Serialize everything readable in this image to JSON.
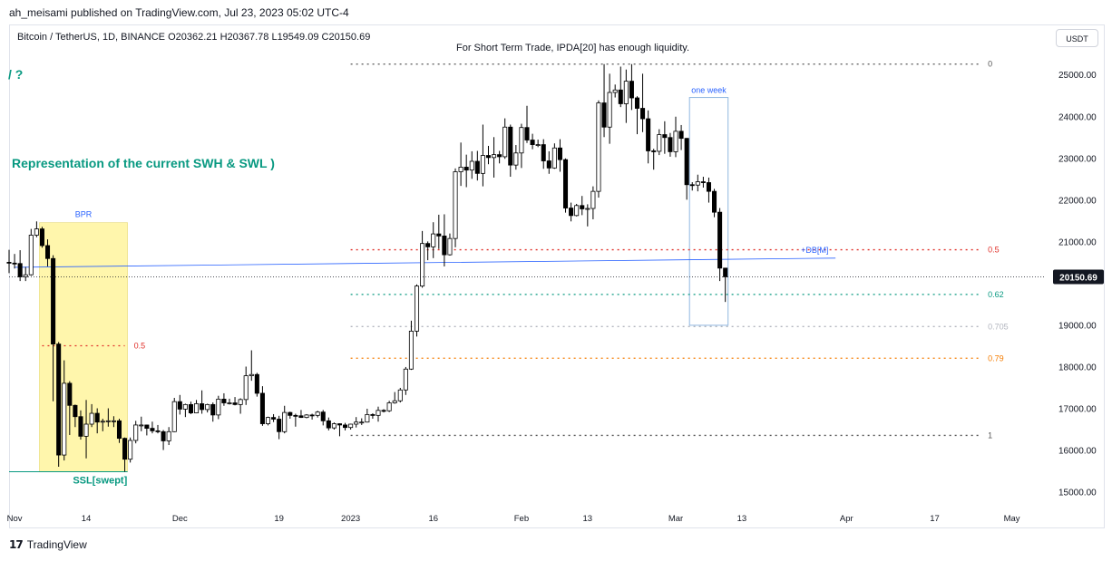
{
  "header": {
    "published_by": "ah_meisami published on TradingView.com, Jul 23, 2023 05:02 UTC-4"
  },
  "symbol_line": "Bitcoin / TetherUS, 1D, BINANCE  O20362.21  H20367.78  L19549.09  C20150.69",
  "currency_button": "USDT",
  "footer": {
    "brand": "TradingView",
    "logo": "tv-logo-icon"
  },
  "chart_data": {
    "type": "candlestick",
    "symbol": "Bitcoin / TetherUS",
    "timeframe": "1D",
    "exchange": "BINANCE",
    "ohlc": {
      "open": 20362.21,
      "high": 20367.78,
      "low": 19549.09,
      "close": 20150.69
    },
    "last_price_label": "20150.69",
    "y_ticks": [
      25000,
      24000,
      23000,
      22000,
      21000,
      20000,
      19000,
      18000,
      17000,
      16000,
      15000
    ],
    "y_tick_labels": [
      "25000.00",
      "24000.00",
      "23000.00",
      "22000.00",
      "21000.00",
      "20000.00",
      "19000.00",
      "18000.00",
      "17000.00",
      "16000.00",
      "15000.00"
    ],
    "ylim": [
      14600,
      26200
    ],
    "x_ticks": [
      {
        "label": "Nov",
        "date": "2022-11-01"
      },
      {
        "label": "14",
        "date": "2022-11-14"
      },
      {
        "label": "Dec",
        "date": "2022-12-01"
      },
      {
        "label": "19",
        "date": "2022-12-19"
      },
      {
        "label": "2023",
        "date": "2023-01-01"
      },
      {
        "label": "16",
        "date": "2023-01-16"
      },
      {
        "label": "Feb",
        "date": "2023-02-01"
      },
      {
        "label": "13",
        "date": "2023-02-13"
      },
      {
        "label": "Mar",
        "date": "2023-03-01"
      },
      {
        "label": "13",
        "date": "2023-03-13"
      },
      {
        "label": "Apr",
        "date": "2023-04-01"
      },
      {
        "label": "17",
        "date": "2023-04-17"
      },
      {
        "label": "May",
        "date": "2023-05-01"
      }
    ],
    "xlim": [
      "2022-10-31",
      "2023-05-07"
    ],
    "colors": {
      "up": "#ffffff",
      "down": "#000000",
      "wick": "#000000",
      "teal": "#089981",
      "red": "#e0312a",
      "orange": "#f57c00",
      "blue": "#2962ff",
      "gray": "#555555"
    },
    "candles": [
      [
        "2022-10-31",
        20500,
        20800,
        20240,
        20480
      ],
      [
        "2022-11-01",
        20480,
        20700,
        20350,
        20470
      ],
      [
        "2022-11-02",
        20470,
        20790,
        20050,
        20150
      ],
      [
        "2022-11-03",
        20150,
        20390,
        20050,
        20200
      ],
      [
        "2022-11-04",
        20200,
        21300,
        20180,
        21150
      ],
      [
        "2022-11-05",
        21150,
        21480,
        21100,
        21300
      ],
      [
        "2022-11-06",
        21300,
        21350,
        20850,
        20900
      ],
      [
        "2022-11-07",
        20900,
        21050,
        20400,
        20590
      ],
      [
        "2022-11-08",
        20590,
        20670,
        17170,
        18540
      ],
      [
        "2022-11-09",
        18540,
        18590,
        15600,
        15880
      ],
      [
        "2022-11-10",
        15880,
        18150,
        15750,
        17600
      ],
      [
        "2022-11-11",
        17600,
        17650,
        16360,
        17070
      ],
      [
        "2022-11-12",
        17070,
        17090,
        16550,
        16800
      ],
      [
        "2022-11-13",
        16800,
        16950,
        16250,
        16330
      ],
      [
        "2022-11-14",
        16330,
        17200,
        15800,
        16620
      ],
      [
        "2022-11-15",
        16620,
        17100,
        16550,
        16880
      ],
      [
        "2022-11-16",
        16880,
        17000,
        16400,
        16670
      ],
      [
        "2022-11-17",
        16670,
        16750,
        16450,
        16690
      ],
      [
        "2022-11-18",
        16690,
        17000,
        16560,
        16700
      ],
      [
        "2022-11-19",
        16700,
        16810,
        16550,
        16700
      ],
      [
        "2022-11-20",
        16700,
        16750,
        16170,
        16280
      ],
      [
        "2022-11-21",
        16280,
        16300,
        15480,
        15780
      ],
      [
        "2022-11-22",
        15780,
        16300,
        15700,
        16230
      ],
      [
        "2022-11-23",
        16230,
        16700,
        16160,
        16600
      ],
      [
        "2022-11-24",
        16600,
        16800,
        16450,
        16600
      ],
      [
        "2022-11-25",
        16600,
        16610,
        16350,
        16520
      ],
      [
        "2022-11-26",
        16520,
        16680,
        16400,
        16460
      ],
      [
        "2022-11-27",
        16460,
        16600,
        16400,
        16440
      ],
      [
        "2022-11-28",
        16440,
        16480,
        16000,
        16220
      ],
      [
        "2022-11-29",
        16220,
        16550,
        16120,
        16440
      ],
      [
        "2022-11-30",
        16440,
        17250,
        16430,
        17160
      ],
      [
        "2022-12-01",
        17160,
        17320,
        16850,
        16980
      ],
      [
        "2022-12-02",
        16980,
        17110,
        16790,
        17090
      ],
      [
        "2022-12-03",
        17090,
        17160,
        16860,
        16890
      ],
      [
        "2022-12-04",
        16890,
        17200,
        16880,
        17110
      ],
      [
        "2022-12-05",
        17110,
        17430,
        16870,
        16970
      ],
      [
        "2022-12-06",
        16970,
        17110,
        16900,
        17090
      ],
      [
        "2022-12-07",
        17090,
        17140,
        16680,
        16840
      ],
      [
        "2022-12-08",
        16840,
        17300,
        16740,
        17220
      ],
      [
        "2022-12-09",
        17220,
        17360,
        17060,
        17130
      ],
      [
        "2022-12-10",
        17130,
        17230,
        17090,
        17130
      ],
      [
        "2022-12-11",
        17130,
        17270,
        17070,
        17090
      ],
      [
        "2022-12-12",
        17090,
        17240,
        16870,
        17210
      ],
      [
        "2022-12-13",
        17210,
        18000,
        17080,
        17780
      ],
      [
        "2022-12-14",
        17780,
        18390,
        17660,
        17810
      ],
      [
        "2022-12-15",
        17810,
        17850,
        17280,
        17360
      ],
      [
        "2022-12-16",
        17360,
        17530,
        16580,
        16630
      ],
      [
        "2022-12-17",
        16630,
        16800,
        16590,
        16780
      ],
      [
        "2022-12-18",
        16780,
        16860,
        16670,
        16740
      ],
      [
        "2022-12-19",
        16740,
        16820,
        16260,
        16440
      ],
      [
        "2022-12-20",
        16440,
        17060,
        16400,
        16900
      ],
      [
        "2022-12-21",
        16900,
        16920,
        16750,
        16830
      ],
      [
        "2022-12-22",
        16830,
        16870,
        16560,
        16820
      ],
      [
        "2022-12-23",
        16820,
        16960,
        16770,
        16780
      ],
      [
        "2022-12-24",
        16780,
        16860,
        16760,
        16840
      ],
      [
        "2022-12-25",
        16840,
        16870,
        16730,
        16830
      ],
      [
        "2022-12-26",
        16830,
        16940,
        16780,
        16910
      ],
      [
        "2022-12-27",
        16910,
        16960,
        16590,
        16700
      ],
      [
        "2022-12-28",
        16700,
        16780,
        16470,
        16530
      ],
      [
        "2022-12-29",
        16530,
        16660,
        16490,
        16630
      ],
      [
        "2022-12-30",
        16630,
        16640,
        16330,
        16600
      ],
      [
        "2022-12-31",
        16600,
        16650,
        16470,
        16540
      ],
      [
        "2023-01-01",
        16540,
        16630,
        16490,
        16620
      ],
      [
        "2023-01-02",
        16620,
        16790,
        16540,
        16670
      ],
      [
        "2023-01-03",
        16670,
        16760,
        16600,
        16670
      ],
      [
        "2023-01-04",
        16670,
        16990,
        16660,
        16850
      ],
      [
        "2023-01-05",
        16850,
        16880,
        16750,
        16830
      ],
      [
        "2023-01-06",
        16830,
        17040,
        16680,
        16950
      ],
      [
        "2023-01-07",
        16950,
        16980,
        16900,
        16940
      ],
      [
        "2023-01-08",
        16940,
        17180,
        16910,
        17130
      ],
      [
        "2023-01-09",
        17130,
        17390,
        17110,
        17180
      ],
      [
        "2023-01-10",
        17180,
        17490,
        17140,
        17440
      ],
      [
        "2023-01-11",
        17440,
        17990,
        17320,
        17940
      ],
      [
        "2023-01-12",
        17940,
        19100,
        17920,
        18850
      ],
      [
        "2023-01-13",
        18850,
        19970,
        18720,
        19930
      ],
      [
        "2023-01-14",
        19930,
        21250,
        19890,
        20950
      ],
      [
        "2023-01-15",
        20950,
        21000,
        20550,
        20870
      ],
      [
        "2023-01-16",
        20870,
        21460,
        20600,
        21180
      ],
      [
        "2023-01-17",
        21180,
        21640,
        20820,
        21130
      ],
      [
        "2023-01-18",
        21130,
        21650,
        20400,
        20680
      ],
      [
        "2023-01-19",
        20680,
        21190,
        20660,
        21070
      ],
      [
        "2023-01-20",
        21070,
        22750,
        20860,
        22670
      ],
      [
        "2023-01-21",
        22670,
        23370,
        22330,
        22780
      ],
      [
        "2023-01-22",
        22780,
        23080,
        22300,
        22710
      ],
      [
        "2023-01-23",
        22710,
        23160,
        22500,
        22920
      ],
      [
        "2023-01-24",
        22920,
        23170,
        22460,
        22630
      ],
      [
        "2023-01-25",
        22630,
        23800,
        22320,
        23060
      ],
      [
        "2023-01-26",
        23060,
        23290,
        22850,
        23010
      ],
      [
        "2023-01-27",
        23010,
        23500,
        22530,
        23080
      ],
      [
        "2023-01-28",
        23080,
        23170,
        22870,
        23030
      ],
      [
        "2023-01-29",
        23030,
        23950,
        22980,
        23740
      ],
      [
        "2023-01-30",
        23740,
        23800,
        22550,
        22830
      ],
      [
        "2023-01-31",
        22830,
        23310,
        22720,
        23120
      ],
      [
        "2023-02-01",
        23120,
        23820,
        22760,
        23730
      ],
      [
        "2023-02-02",
        23730,
        24250,
        23360,
        23430
      ],
      [
        "2023-02-03",
        23430,
        23580,
        23210,
        23320
      ],
      [
        "2023-02-04",
        23320,
        23440,
        23260,
        23320
      ],
      [
        "2023-02-05",
        23320,
        23450,
        22740,
        22930
      ],
      [
        "2023-02-06",
        22930,
        23160,
        22620,
        22760
      ],
      [
        "2023-02-07",
        22760,
        23350,
        22740,
        23240
      ],
      [
        "2023-02-08",
        23240,
        23450,
        22670,
        22960
      ],
      [
        "2023-02-09",
        22960,
        22990,
        21690,
        21800
      ],
      [
        "2023-02-10",
        21800,
        21930,
        21480,
        21620
      ],
      [
        "2023-02-11",
        21620,
        21900,
        21600,
        21860
      ],
      [
        "2023-02-12",
        21860,
        22090,
        21630,
        21780
      ],
      [
        "2023-02-13",
        21780,
        21890,
        21360,
        21790
      ],
      [
        "2023-02-14",
        21790,
        22320,
        21530,
        22200
      ],
      [
        "2023-02-15",
        22200,
        24380,
        22050,
        24320
      ],
      [
        "2023-02-16",
        24320,
        25250,
        23500,
        23740
      ],
      [
        "2023-02-17",
        23740,
        25020,
        23340,
        24570
      ],
      [
        "2023-02-18",
        24570,
        24760,
        24450,
        24630
      ],
      [
        "2023-02-19",
        24630,
        25190,
        24220,
        24300
      ],
      [
        "2023-02-20",
        24300,
        25120,
        23840,
        24840
      ],
      [
        "2023-02-21",
        24840,
        25250,
        24150,
        24440
      ],
      [
        "2023-02-22",
        24440,
        24480,
        23570,
        24190
      ],
      [
        "2023-02-23",
        24190,
        25020,
        23620,
        23940
      ],
      [
        "2023-02-24",
        23940,
        24140,
        22870,
        23170
      ],
      [
        "2023-02-25",
        23170,
        23220,
        22720,
        23160
      ],
      [
        "2023-02-26",
        23160,
        23690,
        23070,
        23560
      ],
      [
        "2023-02-27",
        23560,
        23880,
        23100,
        23490
      ],
      [
        "2023-02-28",
        23490,
        23600,
        23030,
        23150
      ],
      [
        "2023-03-01",
        23150,
        23990,
        23020,
        23640
      ],
      [
        "2023-03-02",
        23640,
        23790,
        23190,
        23470
      ],
      [
        "2023-03-03",
        23470,
        23480,
        22000,
        22360
      ],
      [
        "2023-03-04",
        22360,
        22420,
        22220,
        22350
      ],
      [
        "2023-03-05",
        22350,
        22600,
        22200,
        22430
      ],
      [
        "2023-03-06",
        22430,
        22550,
        22290,
        22410
      ],
      [
        "2023-03-07",
        22410,
        22530,
        21930,
        22200
      ],
      [
        "2023-03-08",
        22200,
        22260,
        21580,
        21700
      ],
      [
        "2023-03-09",
        21700,
        21800,
        20050,
        20360
      ],
      [
        "2023-03-10",
        20360,
        20368,
        19549,
        20151
      ]
    ],
    "horizontal_levels": [
      {
        "label": "0",
        "value": 25250,
        "color": "#555555",
        "from": "2023-01-01",
        "to": "2023-04-25"
      },
      {
        "label": "0.5",
        "value": 20800,
        "color": "#e0312a",
        "from": "2023-01-01",
        "to": "2023-04-25"
      },
      {
        "label": "0.62",
        "value": 19730,
        "color": "#089981",
        "from": "2023-01-01",
        "to": "2023-04-25"
      },
      {
        "label": "0.705",
        "value": 18960,
        "color": "#b2b5be",
        "from": "2023-01-01",
        "to": "2023-04-25"
      },
      {
        "label": "0.79",
        "value": 18200,
        "color": "#f57c00",
        "from": "2023-01-01",
        "to": "2023-04-25"
      },
      {
        "label": "1",
        "value": 16350,
        "color": "#555555",
        "from": "2023-01-01",
        "to": "2023-04-25"
      },
      {
        "label": "0.5",
        "value": 18500,
        "color": "#e0312a",
        "from": "2022-11-06",
        "to": "2022-11-21"
      }
    ],
    "bpr_box": {
      "label": "BPR",
      "from": "2022-11-06",
      "to": "2022-11-21",
      "top": 21450,
      "bottom": 15480
    },
    "ssl_line": {
      "label": "SSL[swept]",
      "value": 15480,
      "from": "2022-10-31",
      "to": "2022-11-21"
    },
    "db_line": {
      "label": "+DB[M]",
      "from_date": "2022-11-01",
      "from_value": 20380,
      "to_date": "2023-03-30",
      "to_value": 20600
    },
    "week_box": {
      "label": "one week",
      "from": "2023-03-04",
      "to": "2023-03-10",
      "top": 24450,
      "bottom": 18990
    },
    "annotations": {
      "main_note": "For Short Term Trade, IPDA[20] has enough liquidity.",
      "swh_swl_note": "Representation of the current SWH & SWL )",
      "corner_note": "/ ?"
    }
  }
}
